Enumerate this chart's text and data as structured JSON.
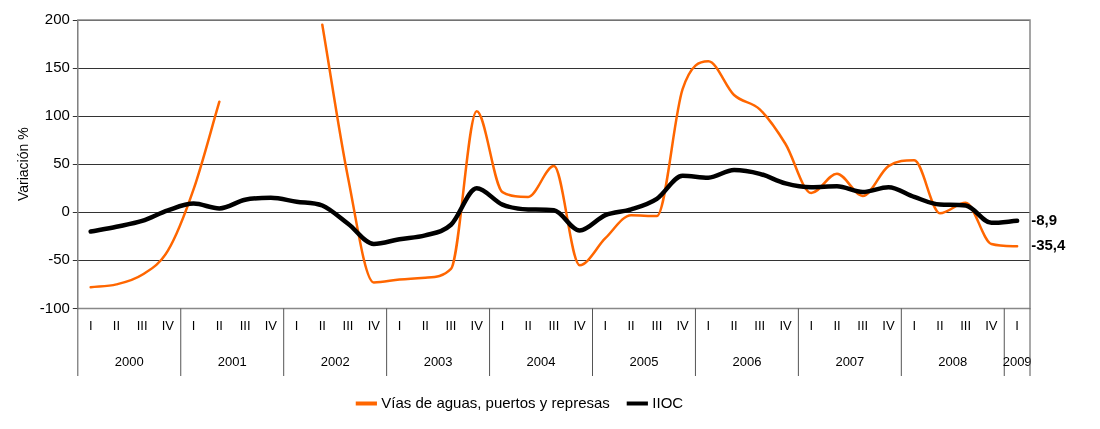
{
  "chart_data": {
    "type": "line",
    "ylabel": "Variación %",
    "categories": [
      "I",
      "II",
      "III",
      "IV",
      "I",
      "II",
      "III",
      "IV",
      "I",
      "II",
      "III",
      "IV",
      "I",
      "II",
      "III",
      "IV",
      "I",
      "II",
      "III",
      "IV",
      "I",
      "II",
      "III",
      "IV",
      "I",
      "II",
      "III",
      "IV",
      "I",
      "II",
      "III",
      "IV",
      "I",
      "II",
      "III",
      "IV",
      "I"
    ],
    "annotations": [
      "2000",
      "2001",
      "2002",
      "2003",
      "2004",
      "2005",
      "2006",
      "2007",
      "2008",
      "2009"
    ],
    "series": [
      {
        "name": "Vías de aguas, puertos y represas",
        "color": "#ff6600",
        "values": [
          -78,
          -75,
          -65,
          -40,
          24,
          115,
          null,
          null,
          null,
          195,
          36,
          -73,
          -70,
          -68,
          -59,
          105,
          21,
          16,
          48,
          -55,
          -27,
          -3,
          -4,
          128,
          157,
          122,
          107,
          71,
          20,
          40,
          17,
          48,
          54,
          -1,
          10,
          -33,
          -35.4
        ],
        "value_labels": [
          null,
          null,
          null,
          null,
          null,
          null,
          null,
          null,
          null,
          null,
          null,
          null,
          null,
          null,
          null,
          null,
          null,
          null,
          null,
          null,
          null,
          null,
          null,
          null,
          null,
          null,
          null,
          null,
          null,
          null,
          null,
          null,
          null,
          null,
          null,
          null,
          "-35,4"
        ]
      },
      {
        "name": "IIOC",
        "color": "#000000",
        "values": [
          -20,
          -15,
          -9,
          2,
          9,
          4,
          13,
          15,
          11,
          7,
          -12,
          -33,
          -28,
          -24,
          -13,
          25,
          8,
          3,
          2,
          -19,
          -3,
          3,
          14,
          38,
          36,
          44,
          40,
          30,
          26,
          27,
          21,
          26,
          16,
          8,
          7,
          -11,
          -8.9
        ],
        "value_labels": [
          null,
          null,
          null,
          null,
          null,
          null,
          null,
          null,
          null,
          null,
          null,
          null,
          null,
          null,
          null,
          null,
          null,
          null,
          null,
          null,
          null,
          null,
          null,
          null,
          null,
          null,
          null,
          null,
          null,
          null,
          null,
          null,
          null,
          null,
          null,
          null,
          "-8,9"
        ]
      }
    ],
    "ylim": [
      -100,
      200
    ],
    "yticks": [
      -100,
      -50,
      0,
      50,
      100,
      150,
      200
    ],
    "grid": "y",
    "legend": "bottom",
    "marker": "none",
    "line_style": "solid"
  }
}
